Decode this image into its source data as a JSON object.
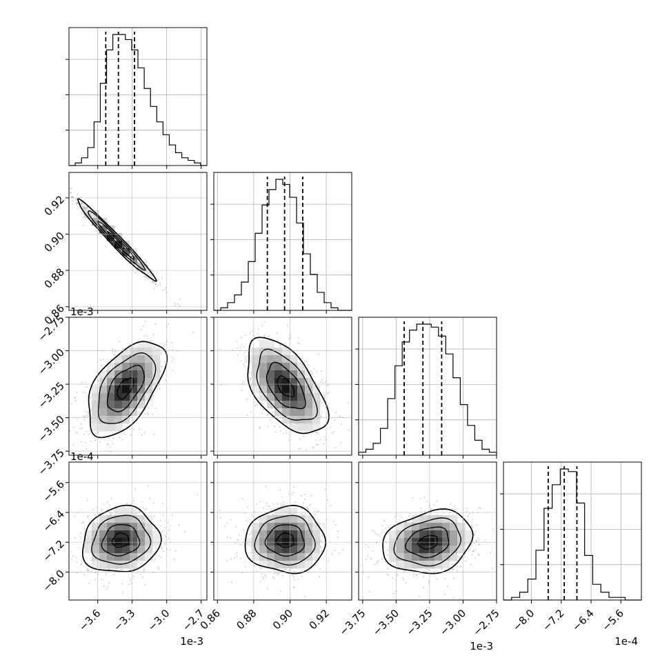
{
  "chart_data": {
    "type": "corner",
    "title": "",
    "grid": true,
    "params": [
      {
        "offset": "1e-3",
        "range": [
          -3.85,
          -2.65
        ],
        "ticks": [
          -3.6,
          -3.3,
          -3.0,
          -2.7
        ],
        "tick_labels": [
          "−3.6",
          "−3.3",
          "−3.0",
          "−2.7"
        ]
      },
      {
        "offset": "",
        "range": [
          0.858,
          0.934
        ],
        "ticks": [
          0.86,
          0.88,
          0.9,
          0.92
        ],
        "tick_labels": [
          "0.86",
          "0.88",
          "0.90",
          "0.92"
        ]
      },
      {
        "offset": "1e-3",
        "range": [
          -3.78,
          -2.75
        ],
        "ticks": [
          -3.75,
          -3.5,
          -3.25,
          -3.0,
          -2.75
        ],
        "tick_labels": [
          "−3.75",
          "−3.50",
          "−3.25",
          "−3.00",
          "−2.75"
        ]
      },
      {
        "offset": "1e-4",
        "range": [
          -8.75,
          -5.05
        ],
        "ticks": [
          -8.0,
          -7.2,
          -6.4,
          -5.6
        ],
        "tick_labels": [
          "−8.0",
          "−7.2",
          "−6.4",
          "−5.6"
        ]
      }
    ],
    "quantiles": [
      [
        -3.53,
        -3.42,
        -3.28
      ],
      [
        0.8875,
        0.897,
        0.907
      ],
      [
        -3.44,
        -3.3,
        -3.16
      ],
      [
        -7.55,
        -7.12,
        -6.78
      ]
    ],
    "histograms": [
      [
        0,
        1,
        3,
        7,
        17,
        32,
        45,
        51,
        51,
        49,
        45,
        38,
        30,
        23,
        17,
        12,
        8,
        5,
        3,
        2,
        1,
        0
      ],
      [
        0,
        1,
        3,
        6,
        11,
        19,
        30,
        41,
        47,
        51,
        49,
        44,
        34,
        22,
        14,
        7,
        3,
        1,
        0,
        0
      ],
      [
        1,
        2,
        4,
        9,
        19,
        30,
        38,
        42,
        44,
        44,
        43,
        40,
        34,
        26,
        17,
        10,
        5,
        2,
        1
      ],
      [
        0,
        1,
        3,
        8,
        19,
        35,
        44,
        50,
        49,
        37,
        17,
        6,
        3,
        1,
        1,
        0,
        0
      ]
    ],
    "pairs": [
      {
        "row": 1,
        "col": 0,
        "center": [
          -3.44,
          0.8965
        ],
        "sd": [
          0.16,
          0.0105
        ],
        "rho": -0.98
      },
      {
        "row": 2,
        "col": 0,
        "center": [
          -3.36,
          -3.28
        ],
        "sd": [
          0.16,
          0.17
        ],
        "rho": 0.55
      },
      {
        "row": 2,
        "col": 1,
        "center": [
          0.8975,
          -3.27
        ],
        "sd": [
          0.0105,
          0.17
        ],
        "rho": -0.55
      },
      {
        "row": 3,
        "col": 0,
        "center": [
          -3.4,
          -7.15
        ],
        "sd": [
          0.16,
          0.42
        ],
        "rho": 0.1
      },
      {
        "row": 3,
        "col": 1,
        "center": [
          0.8975,
          -7.15
        ],
        "sd": [
          0.0105,
          0.42
        ],
        "rho": 0.0
      },
      {
        "row": 3,
        "col": 2,
        "center": [
          -3.26,
          -7.2
        ],
        "sd": [
          0.16,
          0.4
        ],
        "rho": 0.2
      }
    ]
  }
}
